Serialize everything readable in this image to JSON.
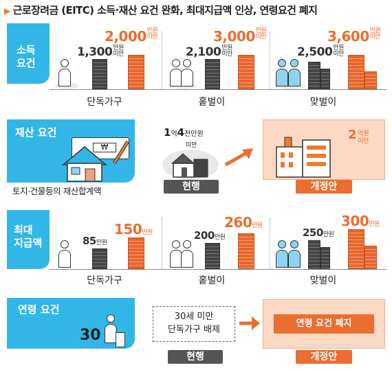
{
  "title": "근로장려금 (EITC) 소득·재산 요건 완화, 최대지급액 인상, 연령요건 폐지",
  "income": {
    "label_line1": "소득",
    "label_line2": "요건",
    "groups": [
      {
        "name": "단독가구",
        "current": "1,300",
        "new": "2,000"
      },
      {
        "name": "홑벌이",
        "current": "2,100",
        "new": "3,000"
      },
      {
        "name": "맞벌이",
        "current": "2,500",
        "new": "3,600"
      }
    ],
    "unit_top": "만원",
    "unit_bottom": "미만"
  },
  "property": {
    "label": "재산 요건",
    "caption": "토지·건물등의 재산합계액",
    "current_value_a": "1",
    "current_unit_a": "억",
    "current_value_b": "4",
    "current_unit_b": "천만원",
    "current_suffix": "미만",
    "new_value": "2",
    "new_unit_top": "억원",
    "new_unit_bottom": "미만",
    "current_pill": "현행",
    "new_pill": "개정안",
    "icon_text": "₩"
  },
  "max_payment": {
    "label_line1": "최대",
    "label_line2": "지급액",
    "groups": [
      {
        "name": "단독가구",
        "current": "85",
        "new": "150"
      },
      {
        "name": "홑벌이",
        "current": "200",
        "new": "260"
      },
      {
        "name": "맞벌이",
        "current": "250",
        "new": "300"
      }
    ],
    "unit": "만원"
  },
  "age": {
    "label": "연령 요건",
    "age_value": "30",
    "current_line1": "30세 미만",
    "current_line2": "단독가구 배제",
    "new_text": "연령 요건 폐지",
    "current_pill": "현행",
    "new_pill": "개정안"
  },
  "colors": {
    "accent": "#ec6d30",
    "blue": "#32b6e8",
    "dark": "#444444",
    "peach": "#fbd9c3"
  }
}
